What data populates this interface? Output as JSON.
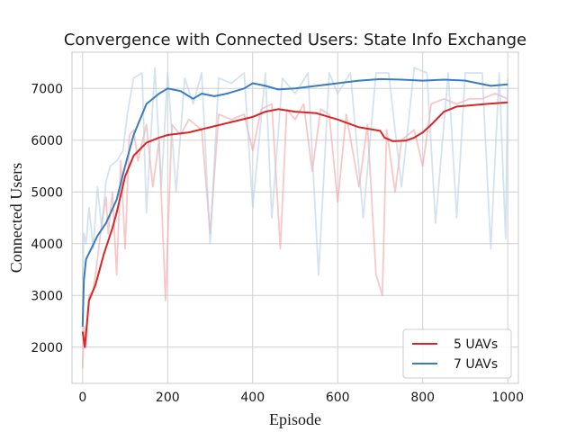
{
  "chart_data": {
    "type": "line",
    "title": "Convergence with Connected Users: State Info Exchange",
    "xlabel": "Episode",
    "ylabel": "Connected Users",
    "xlim": [
      -25,
      1025
    ],
    "ylim": [
      1300,
      7700
    ],
    "xticks": [
      0,
      200,
      400,
      600,
      800,
      1000
    ],
    "yticks": [
      2000,
      3000,
      4000,
      5000,
      6000,
      7000
    ],
    "grid": true,
    "legend": "lower-right",
    "series": [
      {
        "name": "5 UAVs",
        "color": "#d62728",
        "raw_color": "#f4a3a3",
        "smoothed": [
          [
            0,
            2300
          ],
          [
            5,
            2000
          ],
          [
            15,
            2900
          ],
          [
            30,
            3200
          ],
          [
            50,
            3800
          ],
          [
            70,
            4300
          ],
          [
            80,
            4600
          ],
          [
            100,
            5300
          ],
          [
            120,
            5700
          ],
          [
            150,
            5950
          ],
          [
            180,
            6050
          ],
          [
            200,
            6100
          ],
          [
            250,
            6150
          ],
          [
            300,
            6250
          ],
          [
            350,
            6350
          ],
          [
            400,
            6450
          ],
          [
            430,
            6550
          ],
          [
            460,
            6600
          ],
          [
            500,
            6550
          ],
          [
            550,
            6520
          ],
          [
            600,
            6400
          ],
          [
            650,
            6250
          ],
          [
            700,
            6180
          ],
          [
            710,
            6050
          ],
          [
            730,
            5980
          ],
          [
            760,
            5990
          ],
          [
            780,
            6050
          ],
          [
            800,
            6150
          ],
          [
            820,
            6300
          ],
          [
            850,
            6550
          ],
          [
            880,
            6650
          ],
          [
            920,
            6680
          ],
          [
            950,
            6700
          ],
          [
            1000,
            6730
          ]
        ],
        "raw": [
          [
            0,
            1600
          ],
          [
            3,
            2400
          ],
          [
            8,
            2000
          ],
          [
            15,
            3000
          ],
          [
            25,
            3100
          ],
          [
            35,
            3700
          ],
          [
            45,
            4400
          ],
          [
            55,
            4900
          ],
          [
            60,
            4200
          ],
          [
            70,
            5000
          ],
          [
            80,
            3400
          ],
          [
            90,
            5600
          ],
          [
            100,
            3900
          ],
          [
            110,
            6100
          ],
          [
            120,
            6200
          ],
          [
            130,
            5600
          ],
          [
            150,
            6300
          ],
          [
            165,
            5100
          ],
          [
            180,
            6000
          ],
          [
            195,
            2900
          ],
          [
            210,
            6300
          ],
          [
            230,
            6100
          ],
          [
            250,
            6400
          ],
          [
            280,
            6200
          ],
          [
            300,
            4200
          ],
          [
            320,
            6500
          ],
          [
            350,
            6400
          ],
          [
            380,
            6500
          ],
          [
            400,
            5800
          ],
          [
            420,
            6600
          ],
          [
            445,
            6700
          ],
          [
            465,
            3900
          ],
          [
            480,
            6600
          ],
          [
            500,
            6400
          ],
          [
            520,
            6700
          ],
          [
            540,
            5400
          ],
          [
            560,
            6600
          ],
          [
            580,
            6500
          ],
          [
            600,
            4800
          ],
          [
            620,
            6500
          ],
          [
            650,
            5100
          ],
          [
            670,
            6300
          ],
          [
            690,
            3400
          ],
          [
            705,
            3000
          ],
          [
            715,
            6200
          ],
          [
            735,
            5000
          ],
          [
            750,
            6000
          ],
          [
            780,
            6200
          ],
          [
            800,
            5500
          ],
          [
            820,
            6700
          ],
          [
            850,
            6800
          ],
          [
            880,
            6700
          ],
          [
            910,
            6800
          ],
          [
            940,
            6800
          ],
          [
            970,
            6900
          ],
          [
            1000,
            6800
          ]
        ]
      },
      {
        "name": "7 UAVs",
        "color": "#3a7dbf",
        "raw_color": "#b8d0e4",
        "smoothed": [
          [
            0,
            2400
          ],
          [
            3,
            3300
          ],
          [
            8,
            3700
          ],
          [
            20,
            3900
          ],
          [
            35,
            4150
          ],
          [
            55,
            4400
          ],
          [
            80,
            4850
          ],
          [
            100,
            5500
          ],
          [
            120,
            6100
          ],
          [
            150,
            6700
          ],
          [
            180,
            6900
          ],
          [
            200,
            7000
          ],
          [
            230,
            6950
          ],
          [
            260,
            6800
          ],
          [
            280,
            6900
          ],
          [
            310,
            6850
          ],
          [
            340,
            6900
          ],
          [
            380,
            7000
          ],
          [
            400,
            7100
          ],
          [
            430,
            7050
          ],
          [
            460,
            6980
          ],
          [
            500,
            7000
          ],
          [
            550,
            7050
          ],
          [
            600,
            7100
          ],
          [
            650,
            7150
          ],
          [
            700,
            7180
          ],
          [
            750,
            7170
          ],
          [
            800,
            7150
          ],
          [
            850,
            7170
          ],
          [
            900,
            7150
          ],
          [
            930,
            7100
          ],
          [
            960,
            7050
          ],
          [
            1000,
            7080
          ]
        ],
        "raw": [
          [
            0,
            3300
          ],
          [
            3,
            4200
          ],
          [
            8,
            4000
          ],
          [
            15,
            4700
          ],
          [
            25,
            3900
          ],
          [
            35,
            5100
          ],
          [
            45,
            4300
          ],
          [
            55,
            5200
          ],
          [
            65,
            5500
          ],
          [
            80,
            5600
          ],
          [
            95,
            5800
          ],
          [
            105,
            6500
          ],
          [
            120,
            7200
          ],
          [
            140,
            7300
          ],
          [
            150,
            4600
          ],
          [
            170,
            7400
          ],
          [
            185,
            5100
          ],
          [
            200,
            7300
          ],
          [
            220,
            5000
          ],
          [
            240,
            7200
          ],
          [
            260,
            6700
          ],
          [
            280,
            7300
          ],
          [
            300,
            4000
          ],
          [
            320,
            7200
          ],
          [
            350,
            7100
          ],
          [
            380,
            7300
          ],
          [
            400,
            4700
          ],
          [
            430,
            7300
          ],
          [
            445,
            4500
          ],
          [
            470,
            7200
          ],
          [
            500,
            6900
          ],
          [
            530,
            7300
          ],
          [
            555,
            3400
          ],
          [
            580,
            7300
          ],
          [
            600,
            6900
          ],
          [
            630,
            7300
          ],
          [
            660,
            4500
          ],
          [
            690,
            7300
          ],
          [
            720,
            7300
          ],
          [
            750,
            5100
          ],
          [
            780,
            7400
          ],
          [
            810,
            7300
          ],
          [
            830,
            4400
          ],
          [
            860,
            7300
          ],
          [
            880,
            4500
          ],
          [
            900,
            7300
          ],
          [
            940,
            7300
          ],
          [
            960,
            3900
          ],
          [
            980,
            7300
          ],
          [
            995,
            4100
          ],
          [
            1000,
            7200
          ]
        ]
      }
    ]
  }
}
